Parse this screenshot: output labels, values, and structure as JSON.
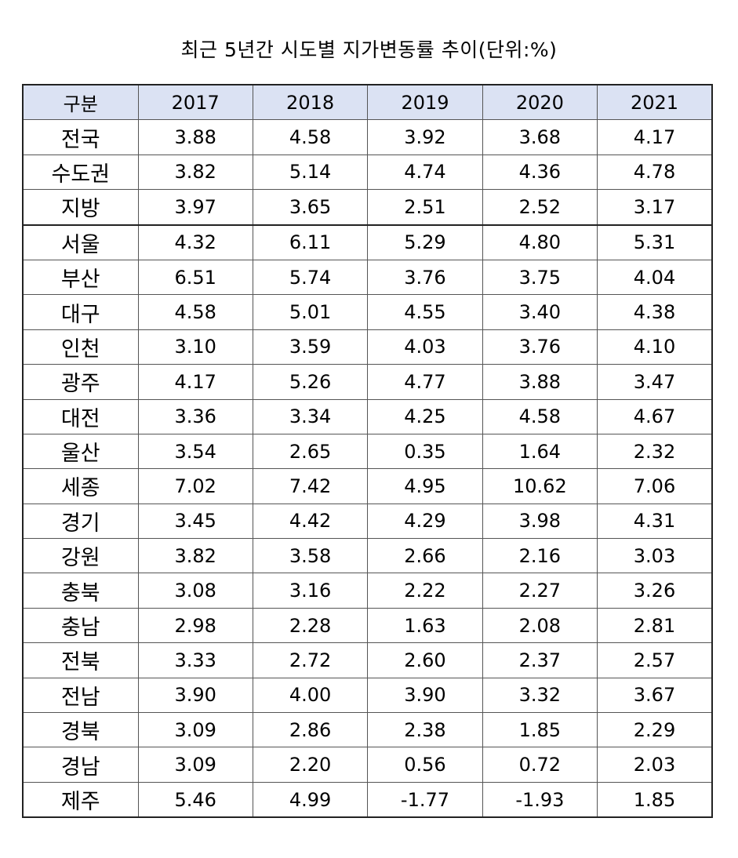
{
  "title": "최근 5년간 시도별 지가변동률 추이(단위:%)",
  "table": {
    "header": {
      "label": "구분",
      "years": [
        "2017",
        "2018",
        "2019",
        "2020",
        "2021"
      ]
    },
    "rows": [
      {
        "label": "전국",
        "values": [
          "3.88",
          "4.58",
          "3.92",
          "3.68",
          "4.17"
        ]
      },
      {
        "label": "수도권",
        "values": [
          "3.82",
          "5.14",
          "4.74",
          "4.36",
          "4.78"
        ]
      },
      {
        "label": "지방",
        "values": [
          "3.97",
          "3.65",
          "2.51",
          "2.52",
          "3.17"
        ]
      },
      {
        "label": "서울",
        "values": [
          "4.32",
          "6.11",
          "5.29",
          "4.80",
          "5.31"
        ]
      },
      {
        "label": "부산",
        "values": [
          "6.51",
          "5.74",
          "3.76",
          "3.75",
          "4.04"
        ]
      },
      {
        "label": "대구",
        "values": [
          "4.58",
          "5.01",
          "4.55",
          "3.40",
          "4.38"
        ]
      },
      {
        "label": "인천",
        "values": [
          "3.10",
          "3.59",
          "4.03",
          "3.76",
          "4.10"
        ]
      },
      {
        "label": "광주",
        "values": [
          "4.17",
          "5.26",
          "4.77",
          "3.88",
          "3.47"
        ]
      },
      {
        "label": "대전",
        "values": [
          "3.36",
          "3.34",
          "4.25",
          "4.58",
          "4.67"
        ]
      },
      {
        "label": "울산",
        "values": [
          "3.54",
          "2.65",
          "0.35",
          "1.64",
          "2.32"
        ]
      },
      {
        "label": "세종",
        "values": [
          "7.02",
          "7.42",
          "4.95",
          "10.62",
          "7.06"
        ]
      },
      {
        "label": "경기",
        "values": [
          "3.45",
          "4.42",
          "4.29",
          "3.98",
          "4.31"
        ]
      },
      {
        "label": "강원",
        "values": [
          "3.82",
          "3.58",
          "2.66",
          "2.16",
          "3.03"
        ]
      },
      {
        "label": "충북",
        "values": [
          "3.08",
          "3.16",
          "2.22",
          "2.27",
          "3.26"
        ]
      },
      {
        "label": "충남",
        "values": [
          "2.98",
          "2.28",
          "1.63",
          "2.08",
          "2.81"
        ]
      },
      {
        "label": "전북",
        "values": [
          "3.33",
          "2.72",
          "2.60",
          "2.37",
          "2.57"
        ]
      },
      {
        "label": "전남",
        "values": [
          "3.90",
          "4.00",
          "3.90",
          "3.32",
          "3.67"
        ]
      },
      {
        "label": "경북",
        "values": [
          "3.09",
          "2.86",
          "2.38",
          "1.85",
          "2.29"
        ]
      },
      {
        "label": "경남",
        "values": [
          "3.09",
          "2.20",
          "0.56",
          "0.72",
          "2.03"
        ]
      },
      {
        "label": "제주",
        "values": [
          "5.46",
          "4.99",
          "-1.77",
          "-1.93",
          "1.85"
        ]
      }
    ]
  },
  "colors": {
    "header_background": "#dbe2f3",
    "border": "#555555",
    "text": "#000000"
  }
}
